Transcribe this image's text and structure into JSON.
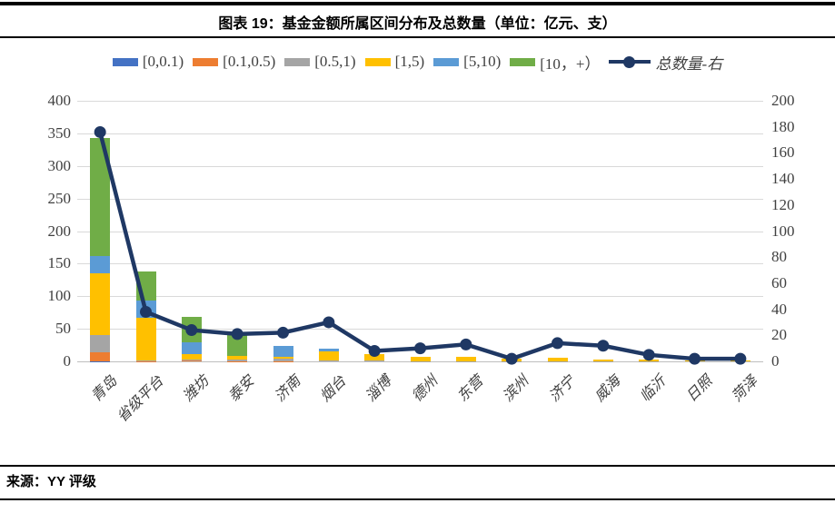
{
  "header": {
    "title": "图表 19：基金金额所属区间分布及总数量（单位：亿元、支）"
  },
  "footer": {
    "source": "来源：YY 评级"
  },
  "colors": {
    "accent_line": "#1F3864",
    "gridline": "#D9D9D9",
    "axis_text": "#404040",
    "rule": "#000000"
  },
  "chart_data": {
    "type": "bar",
    "subtype": "stacked-bar-with-line-combo",
    "title": "图表 19：基金金额所属区间分布及总数量（单位：亿元、支）",
    "categories": [
      "青岛",
      "省级平台",
      "潍坊",
      "泰安",
      "济南",
      "烟台",
      "淄博",
      "德州",
      "东营",
      "滨州",
      "济宁",
      "威海",
      "临沂",
      "日照",
      "菏泽"
    ],
    "series": [
      {
        "name": "[0,0.1)",
        "type": "bar",
        "color": "#4472C4",
        "values": [
          0.5,
          0,
          0,
          0,
          0,
          0,
          0,
          0,
          0,
          0,
          0,
          0,
          0,
          0,
          0
        ]
      },
      {
        "name": "[0.1,0.5)",
        "type": "bar",
        "color": "#ED7D31",
        "values": [
          14,
          0.5,
          1,
          0.5,
          0.5,
          0,
          0,
          0,
          0,
          0,
          0,
          0,
          0,
          0,
          0
        ]
      },
      {
        "name": "[0.5,1)",
        "type": "bar",
        "color": "#A5A5A5",
        "values": [
          25.5,
          1,
          2,
          2.5,
          3,
          2,
          1,
          0.5,
          0.5,
          0.3,
          0.5,
          0.5,
          0.5,
          0,
          0
        ]
      },
      {
        "name": "[1,5)",
        "type": "bar",
        "color": "#FFC000",
        "values": [
          95,
          66,
          8,
          5.5,
          3.5,
          13,
          10,
          7,
          7,
          4.2,
          5.5,
          2.5,
          2.5,
          1,
          1.5
        ]
      },
      {
        "name": "[5,10)",
        "type": "bar",
        "color": "#5B9BD5",
        "values": [
          27,
          26,
          18,
          0,
          17,
          5,
          0,
          0,
          0,
          0,
          0,
          0,
          0,
          0,
          0
        ]
      },
      {
        "name": "[10，+）",
        "type": "bar",
        "color": "#70AD47",
        "values": [
          181,
          45,
          39,
          31.5,
          0,
          0,
          0,
          0,
          0,
          0,
          0,
          0,
          0,
          0,
          0
        ]
      },
      {
        "name": "总数量-右",
        "type": "line",
        "axis": "right",
        "color": "#1F3864",
        "values": [
          176,
          38,
          24,
          21,
          22,
          30,
          8,
          10,
          13,
          2,
          14,
          12,
          5,
          2,
          2
        ]
      }
    ],
    "left_axis": {
      "min": 0,
      "max": 400,
      "step": 50,
      "tick_labels": [
        "0",
        "50",
        "100",
        "150",
        "200",
        "250",
        "300",
        "350",
        "400"
      ]
    },
    "right_axis": {
      "min": 0,
      "max": 200,
      "step": 20,
      "tick_labels": [
        "0",
        "20",
        "40",
        "60",
        "80",
        "100",
        "120",
        "140",
        "160",
        "180",
        "200"
      ]
    },
    "grid": true,
    "legend_position": "top"
  }
}
